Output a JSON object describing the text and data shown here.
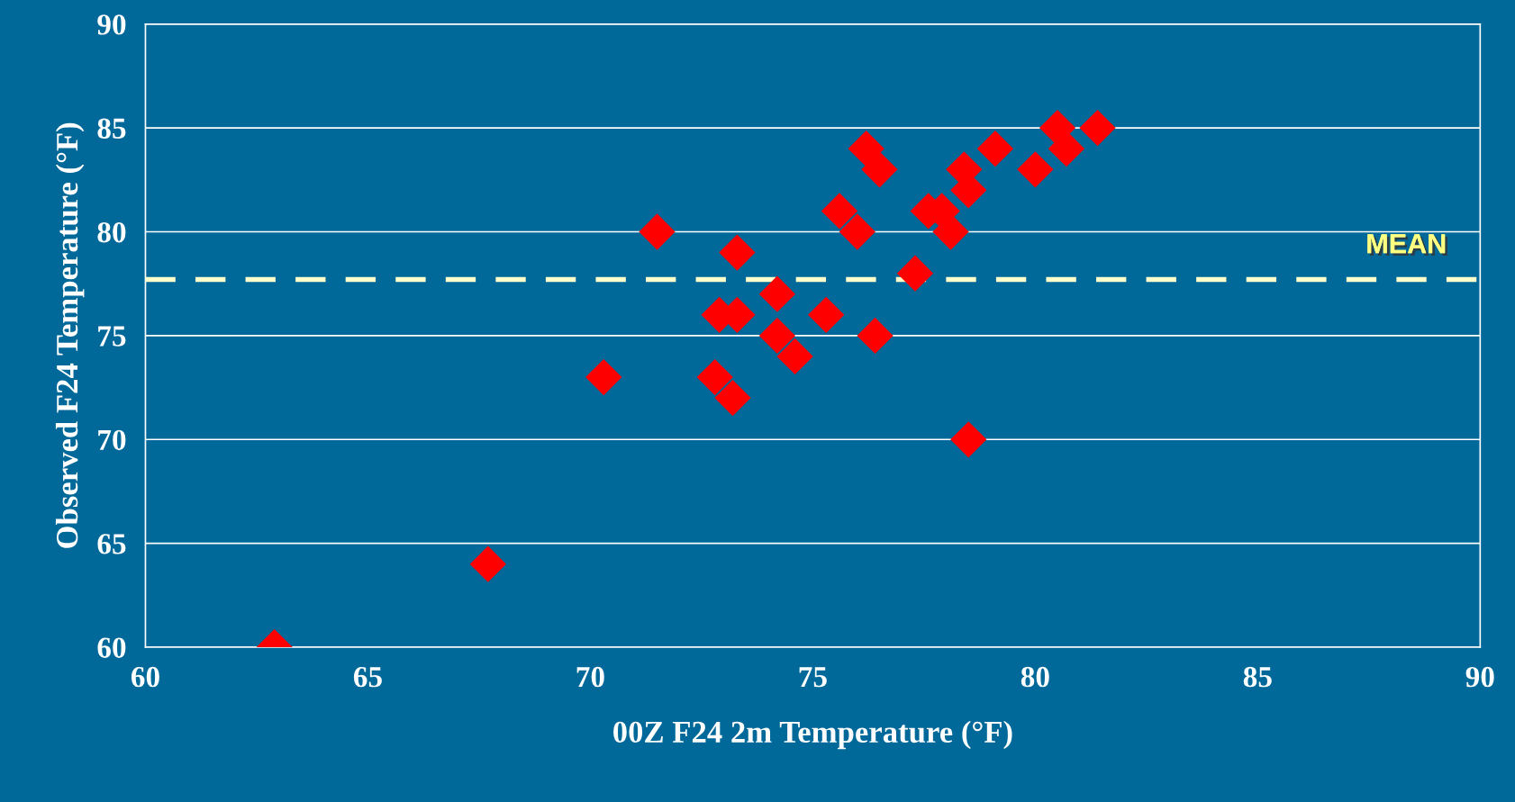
{
  "chart_data": {
    "type": "scatter",
    "xlabel": "00Z F24 2m Temperature (°F)",
    "ylabel": "Observed F24 Temperature (°F)",
    "x": [
      62.9,
      67.7,
      70.3,
      71.5,
      72.8,
      72.9,
      73.2,
      73.3,
      73.3,
      74.2,
      74.2,
      74.6,
      75.3,
      75.6,
      76.0,
      76.2,
      76.4,
      76.5,
      77.3,
      77.6,
      77.9,
      78.1,
      78.4,
      78.5,
      78.5,
      79.1,
      80.0,
      80.5,
      80.7,
      81.4
    ],
    "series": [
      {
        "color": "#ff0000",
        "values": [
          60,
          64,
          73,
          80,
          73,
          76,
          72,
          76,
          79,
          77,
          75,
          74,
          76,
          81,
          80,
          84,
          75,
          83,
          78,
          81,
          81,
          80,
          83,
          82,
          70,
          84,
          83,
          85,
          84,
          85
        ]
      }
    ],
    "xlim": [
      60,
      90
    ],
    "xticks": [
      60,
      65,
      70,
      75,
      80,
      85,
      90
    ],
    "ylim": [
      60,
      90
    ],
    "yticks": [
      60,
      65,
      70,
      75,
      80,
      85,
      90
    ],
    "ref_lines": [
      {
        "axis": "y",
        "value": 77.7,
        "label": "MEAN",
        "color": "#ffffcc",
        "line_style": "dashed"
      }
    ],
    "grid": "y",
    "marker": "diamond",
    "legend": false
  }
}
